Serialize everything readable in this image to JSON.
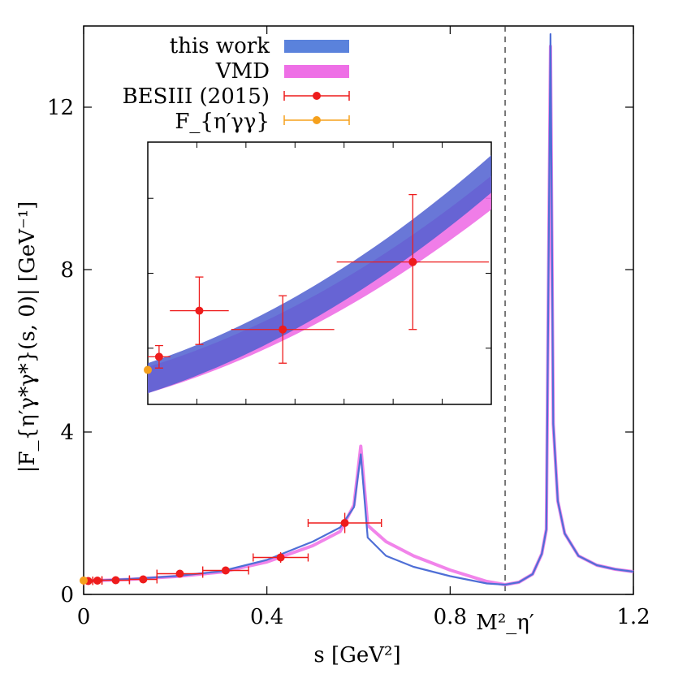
{
  "chart_data": {
    "type": "line",
    "xlabel": "s [GeV²]",
    "ylabel": "|F_{η′γ*γ*}(s, 0)| [GeV⁻¹]",
    "xlim": [
      0,
      1.2
    ],
    "ylim": [
      0,
      14
    ],
    "x_ticks": [
      "0",
      "0.4",
      "0.8",
      "1.2"
    ],
    "x_tick_values": [
      0,
      0.4,
      0.8,
      1.2
    ],
    "y_ticks": [
      "0",
      "4",
      "8",
      "12"
    ],
    "y_tick_values": [
      0,
      4,
      8,
      12
    ],
    "vertical_line": {
      "x": 0.92,
      "label": "M²_η′"
    },
    "legend": {
      "placement": "top-left",
      "entries": [
        {
          "label": "this work",
          "color": "#5a82dc",
          "kind": "band"
        },
        {
          "label": "VMD",
          "color": "#ee6fe6",
          "kind": "band"
        },
        {
          "label": "BESIII (2015)",
          "color": "#ee1c1c",
          "kind": "errorbar"
        },
        {
          "label": "F_{η′γγ}",
          "color": "#f5a01c",
          "kind": "errorbar"
        }
      ]
    },
    "series": [
      {
        "name": "this work",
        "color": "#4f6fd6",
        "x": [
          0,
          0.1,
          0.2,
          0.3,
          0.4,
          0.5,
          0.56,
          0.59,
          0.605,
          0.62,
          0.66,
          0.72,
          0.8,
          0.88,
          0.92,
          0.95,
          0.98,
          1.0,
          1.01,
          1.019,
          1.025,
          1.035,
          1.05,
          1.08,
          1.12,
          1.16,
          1.2
        ],
        "y": [
          0.33,
          0.38,
          0.45,
          0.57,
          0.85,
          1.3,
          1.65,
          2.15,
          3.45,
          1.4,
          0.95,
          0.68,
          0.45,
          0.27,
          0.24,
          0.3,
          0.5,
          1.0,
          1.6,
          13.8,
          4.2,
          2.3,
          1.5,
          0.95,
          0.72,
          0.62,
          0.56
        ]
      },
      {
        "name": "VMD",
        "color": "#ee6fe6",
        "x": [
          0,
          0.1,
          0.2,
          0.3,
          0.4,
          0.5,
          0.56,
          0.59,
          0.605,
          0.62,
          0.66,
          0.72,
          0.8,
          0.88,
          0.92,
          0.95,
          0.98,
          1.0,
          1.01,
          1.019,
          1.025,
          1.035,
          1.05,
          1.08,
          1.12,
          1.16,
          1.2
        ],
        "y": [
          0.33,
          0.37,
          0.44,
          0.55,
          0.8,
          1.2,
          1.55,
          2.2,
          3.65,
          1.7,
          1.3,
          0.95,
          0.6,
          0.32,
          0.24,
          0.3,
          0.5,
          1.0,
          1.6,
          13.5,
          4.2,
          2.3,
          1.5,
          0.95,
          0.72,
          0.62,
          0.56
        ]
      }
    ],
    "errorbars": [
      {
        "name": "BESIII (2015)",
        "color": "#ee1c1c",
        "points": [
          {
            "x": 0.01,
            "y": 0.33,
            "xerr": 0.01,
            "yerr": 0.04
          },
          {
            "x": 0.03,
            "y": 0.34,
            "xerr": 0.01,
            "yerr": 0.04
          },
          {
            "x": 0.07,
            "y": 0.35,
            "xerr": 0.03,
            "yerr": 0.04
          },
          {
            "x": 0.13,
            "y": 0.37,
            "xerr": 0.03,
            "yerr": 0.05
          },
          {
            "x": 0.21,
            "y": 0.51,
            "xerr": 0.05,
            "yerr": 0.06
          },
          {
            "x": 0.31,
            "y": 0.59,
            "xerr": 0.05,
            "yerr": 0.08
          },
          {
            "x": 0.43,
            "y": 0.91,
            "xerr": 0.06,
            "yerr": 0.13
          },
          {
            "x": 0.57,
            "y": 1.76,
            "xerr": 0.08,
            "yerr": 0.25
          }
        ]
      },
      {
        "name": "F_{η′γγ}",
        "color": "#f5a01c",
        "points": [
          {
            "x": 0,
            "y": 0.342,
            "xerr": 0,
            "yerr": 0.006
          }
        ]
      }
    ],
    "inset": {
      "xlim": [
        0,
        0.7
      ],
      "ylim": [
        0.25,
        0.95
      ],
      "points": [
        {
          "x": 0.023,
          "y": 0.377,
          "xerr": 0.023,
          "yerr": 0.03
        },
        {
          "x": 0.105,
          "y": 0.5,
          "xerr": 0.06,
          "yerr": 0.09
        },
        {
          "x": 0.275,
          "y": 0.45,
          "xerr": 0.105,
          "yerr": 0.09
        },
        {
          "x": 0.54,
          "y": 0.63,
          "xerr": 0.155,
          "yerr": 0.18
        }
      ],
      "band_this_work": {
        "x0": 0,
        "ylo0": 0.28,
        "yhi0": 0.36,
        "x1": 0.7,
        "ylo1": 0.815,
        "yhi1": 0.915
      },
      "band_vmd": {
        "x0": 0,
        "ylo0": 0.28,
        "yhi0": 0.35,
        "x1": 0.7,
        "ylo1": 0.77,
        "yhi1": 0.86
      }
    }
  }
}
